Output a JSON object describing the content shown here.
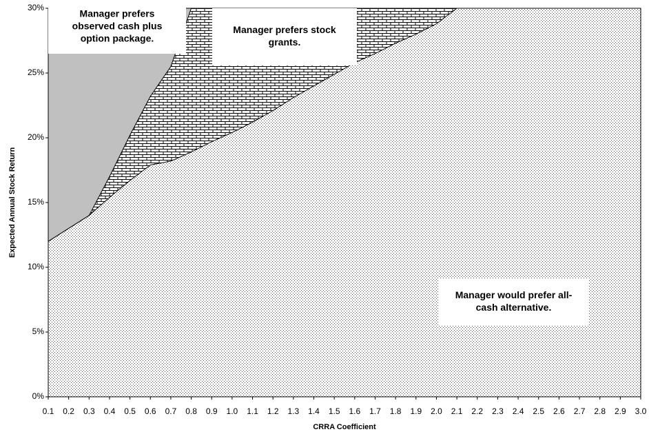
{
  "chart_data": {
    "type": "area",
    "x_label": "CRRA Coefficient",
    "y_label": "Expected Annual Stock Return",
    "x": [
      0.1,
      0.2,
      0.3,
      0.4,
      0.5,
      0.6,
      0.7,
      0.8,
      0.9,
      1.0,
      1.1,
      1.2,
      1.3,
      1.4,
      1.5,
      1.6,
      1.7,
      1.8,
      1.9,
      2.0,
      2.1,
      2.2,
      2.3,
      2.4,
      2.5,
      2.6,
      2.7,
      2.8,
      2.9,
      3.0
    ],
    "series": [
      {
        "fill": "bricks",
        "color": "#000000",
        "values": [
          12,
          13,
          14,
          17,
          20.2,
          23.2,
          25.5,
          30,
          30,
          30,
          30,
          30,
          30,
          30,
          30,
          30,
          30,
          30,
          30,
          30,
          30,
          30,
          30,
          30,
          30,
          30,
          30,
          30,
          30,
          30
        ]
      },
      {
        "fill": "dots",
        "color": "#000000",
        "values": [
          12,
          13,
          14,
          15.4,
          16.7,
          17.9,
          18.2,
          18.9,
          19.7,
          20.4,
          21.2,
          22.1,
          23.1,
          24,
          24.9,
          25.8,
          26.5,
          27.3,
          28,
          28.8,
          30,
          30,
          30,
          30,
          30,
          30,
          30,
          30,
          30,
          30
        ]
      }
    ],
    "upper_region_color": "#c0c0c0",
    "xlim": [
      0.1,
      3.0
    ],
    "xticks": [
      0.1,
      0.2,
      0.3,
      0.4,
      0.5,
      0.6,
      0.7,
      0.8,
      0.9,
      {
        "value": 1.0,
        "label": "1.0"
      },
      1.1,
      1.2,
      1.3,
      1.4,
      1.5,
      1.6,
      1.7,
      1.8,
      1.9,
      {
        "value": 2.0,
        "label": "2.0"
      },
      2.1,
      2.2,
      2.3,
      2.4,
      2.5,
      2.6,
      2.7,
      2.8,
      2.9,
      {
        "value": 3.0,
        "label": "3.0"
      }
    ],
    "ylim": [
      0,
      30
    ],
    "yticks": [
      {
        "value": 0,
        "label": "0%"
      },
      {
        "value": 5,
        "label": "5%"
      },
      {
        "value": 10,
        "label": "10%"
      },
      {
        "value": 15,
        "label": "15%"
      },
      {
        "value": 20,
        "label": "20%"
      },
      {
        "value": 25,
        "label": "25%"
      },
      {
        "value": 30,
        "label": "30%"
      }
    ],
    "annotations": [
      {
        "lines": [
          "Manager prefers",
          "observed cash plus",
          "option package."
        ]
      },
      {
        "lines": [
          "Manager prefers stock",
          "grants."
        ]
      },
      {
        "lines": [
          "Manager would prefer all-",
          "cash alternative."
        ]
      }
    ]
  }
}
